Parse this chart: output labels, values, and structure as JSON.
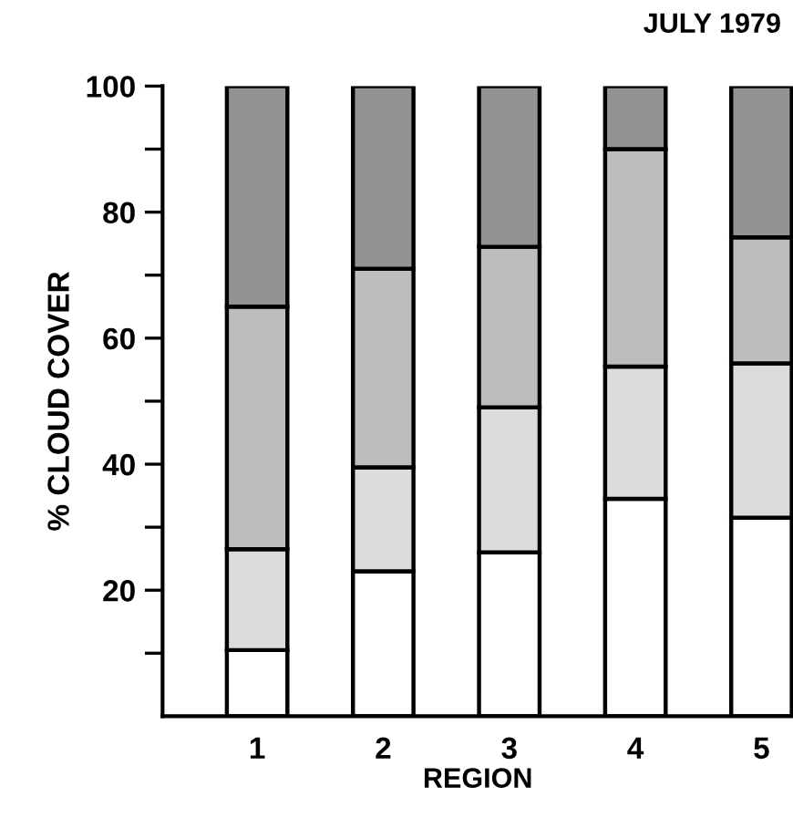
{
  "chart_data": {
    "type": "bar",
    "title": "JULY 1979",
    "xlabel": "REGION",
    "ylabel": "% CLOUD COVER",
    "categories": [
      "1",
      "2",
      "3",
      "4",
      "5"
    ],
    "stacked": true,
    "series": [
      {
        "color": "#ffffff",
        "values": [
          10.5,
          23,
          26,
          34.5,
          31.5
        ]
      },
      {
        "color": "#dcdcdc",
        "values": [
          16,
          16.5,
          23,
          21,
          24.5
        ]
      },
      {
        "color": "#bdbdbd",
        "values": [
          38.5,
          31.5,
          25.5,
          34.5,
          20
        ]
      },
      {
        "color": "#939393",
        "values": [
          35,
          29,
          25.5,
          10,
          24
        ]
      }
    ],
    "ylim": [
      0,
      100
    ],
    "yticks": [
      {
        "value": 10,
        "label": null
      },
      20,
      {
        "value": 30,
        "label": null
      },
      40,
      {
        "value": 50,
        "label": null
      },
      60,
      {
        "value": 70,
        "label": null
      },
      80,
      {
        "value": 90,
        "label": null
      },
      100
    ],
    "grid": false,
    "legend": false
  }
}
